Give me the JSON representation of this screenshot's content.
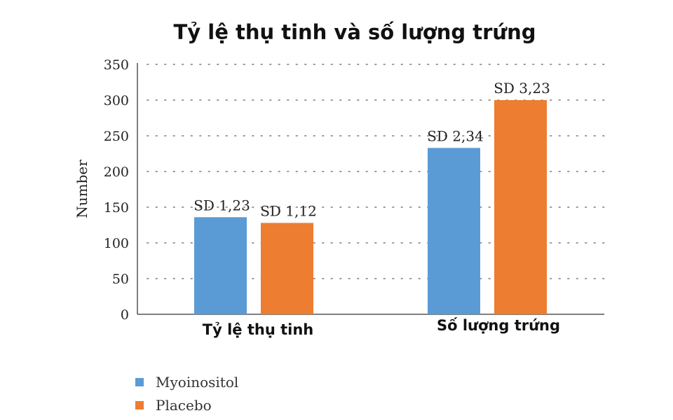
{
  "chart_data": {
    "type": "bar",
    "title": "Tỷ lệ thụ tinh và số lượng trứng",
    "ylabel": "Number",
    "xlabel": "",
    "ylim": [
      0,
      350
    ],
    "yticks": [
      0,
      50,
      100,
      150,
      200,
      250,
      300,
      350
    ],
    "grid": true,
    "legend_position": "bottom-left",
    "categories": [
      "Tỷ lệ thụ tinh",
      "Số lượng trứng"
    ],
    "series": [
      {
        "name": "Myoinositol",
        "color": "#5b9bd5",
        "values": [
          136,
          233
        ],
        "labels": [
          "SD 1,23",
          "SD 2,34"
        ]
      },
      {
        "name": "Placebo",
        "color": "#ed7d31",
        "values": [
          128,
          300
        ],
        "labels": [
          "SD 1,12",
          "SD 3,23"
        ]
      }
    ]
  }
}
